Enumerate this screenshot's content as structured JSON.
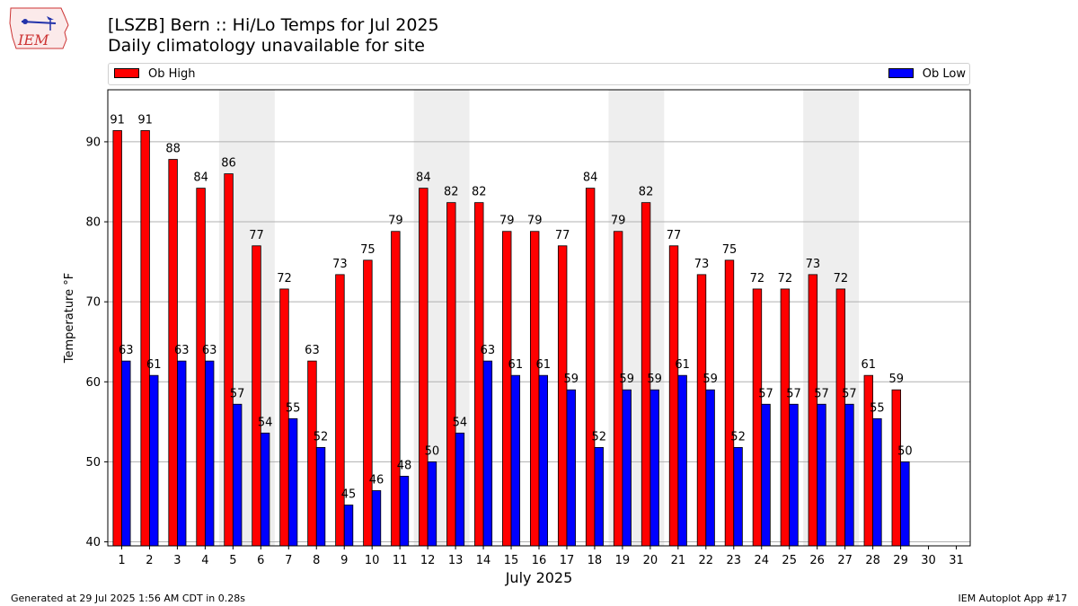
{
  "header": {
    "title": "[LSZB] Bern :: Hi/Lo Temps for Jul 2025",
    "subtitle": "Daily climatology unavailable for site",
    "logo_text": "IEM"
  },
  "footer": {
    "generated": "Generated at 29 Jul 2025 1:56 AM CDT in 0.28s",
    "app": "IEM Autoplot App #17"
  },
  "colors": {
    "high": "#ff0000",
    "low": "#0000ff",
    "weekend_shade": "#eeeeee",
    "grid": "#b0b0b0"
  },
  "chart_data": {
    "type": "bar",
    "xlabel": "July 2025",
    "ylabel": "Temperature °F",
    "ylim": [
      39.5,
      96.5
    ],
    "yticks": [
      40,
      50,
      60,
      70,
      80,
      90
    ],
    "grid": "horizontal",
    "legend_placement": "top",
    "categories": [
      "1",
      "2",
      "3",
      "4",
      "5",
      "6",
      "7",
      "8",
      "9",
      "10",
      "11",
      "12",
      "13",
      "14",
      "15",
      "16",
      "17",
      "18",
      "19",
      "20",
      "21",
      "22",
      "23",
      "24",
      "25",
      "26",
      "27",
      "28",
      "29",
      "30",
      "31"
    ],
    "weekend_spans": [
      [
        5,
        6
      ],
      [
        12,
        13
      ],
      [
        19,
        20
      ],
      [
        26,
        27
      ]
    ],
    "series": [
      {
        "name": "Ob High",
        "color": "#ff0000",
        "values": [
          91.4,
          91.4,
          87.8,
          84.2,
          86.0,
          77.0,
          71.6,
          62.6,
          73.4,
          75.2,
          78.8,
          84.2,
          82.4,
          82.4,
          78.8,
          78.8,
          77.0,
          84.2,
          78.8,
          82.4,
          77.0,
          73.4,
          75.2,
          71.6,
          71.6,
          73.4,
          71.6,
          60.8,
          59.0,
          null,
          null
        ],
        "labels": [
          "91",
          "91",
          "88",
          "84",
          "86",
          "77",
          "72",
          "63",
          "73",
          "75",
          "79",
          "84",
          "82",
          "82",
          "79",
          "79",
          "77",
          "84",
          "79",
          "82",
          "77",
          "73",
          "75",
          "72",
          "72",
          "73",
          "72",
          "61",
          "59",
          "",
          ""
        ]
      },
      {
        "name": "Ob Low",
        "color": "#0000ff",
        "values": [
          62.6,
          60.8,
          62.6,
          62.6,
          57.2,
          53.6,
          55.4,
          51.8,
          44.6,
          46.4,
          48.2,
          50.0,
          53.6,
          62.6,
          60.8,
          60.8,
          59.0,
          51.8,
          59.0,
          59.0,
          60.8,
          59.0,
          51.8,
          57.2,
          57.2,
          57.2,
          57.2,
          55.4,
          50.0,
          null,
          null
        ],
        "labels": [
          "63",
          "61",
          "63",
          "63",
          "57",
          "54",
          "55",
          "52",
          "45",
          "46",
          "48",
          "50",
          "54",
          "63",
          "61",
          "61",
          "59",
          "52",
          "59",
          "59",
          "61",
          "59",
          "52",
          "57",
          "57",
          "57",
          "57",
          "55",
          "50",
          "",
          ""
        ]
      }
    ]
  }
}
